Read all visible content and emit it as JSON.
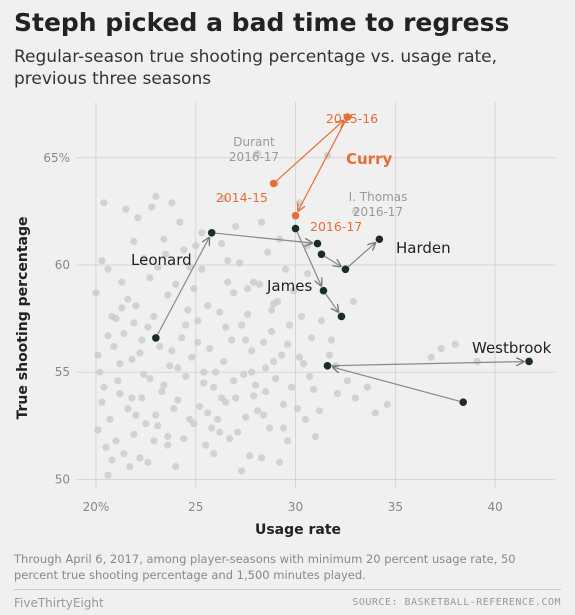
{
  "title": "Steph picked a bad time to regress",
  "subtitle": "Regular-season true shooting percentage vs. usage rate, previous three seasons",
  "footnote": "Through April 6, 2017, among player-seasons with minimum 20 percent usage rate, 50 percent true shooting percentage and 1,500 minutes played.",
  "footer": {
    "brand": "FiveThirtyEight",
    "source": "SOURCE: BASKETBALL-REFERENCE.COM"
  },
  "colors": {
    "background": "#f0f0f0",
    "background_dots": "#c8c8c8",
    "highlight_dark": "#1c2b2b",
    "curry": "#e86d35",
    "annotation_gray": "#999999",
    "arrow_gray": "#888888"
  },
  "chart_data": {
    "type": "scatter",
    "title": "Steph picked a bad time to regress",
    "xlabel": "Usage rate",
    "ylabel": "True shooting percentage",
    "xlim": [
      19,
      43
    ],
    "ylim": [
      49.6,
      67.6
    ],
    "x_ticks": [
      20,
      25,
      30,
      35,
      40
    ],
    "x_tick_labels": [
      "20%",
      "25",
      "30",
      "35",
      "40"
    ],
    "y_ticks": [
      50,
      55,
      60,
      65
    ],
    "y_tick_labels": [
      "50",
      "55",
      "60",
      "65%"
    ],
    "grid": true,
    "background_points": [
      [
        20.0,
        58.7
      ],
      [
        20.4,
        62.9
      ],
      [
        20.6,
        59.8
      ],
      [
        20.9,
        56.2
      ],
      [
        20.2,
        55.0
      ],
      [
        21.1,
        54.6
      ],
      [
        20.3,
        53.6
      ],
      [
        20.7,
        52.8
      ],
      [
        20.1,
        52.3
      ],
      [
        20.5,
        51.5
      ],
      [
        20.8,
        50.9
      ],
      [
        20.6,
        50.2
      ],
      [
        21.3,
        59.2
      ],
      [
        21.6,
        58.4
      ],
      [
        21.0,
        57.5
      ],
      [
        21.4,
        56.8
      ],
      [
        21.8,
        55.6
      ],
      [
        21.2,
        54.0
      ],
      [
        21.6,
        53.3
      ],
      [
        21.9,
        52.1
      ],
      [
        21.4,
        51.2
      ],
      [
        21.7,
        50.6
      ],
      [
        22.1,
        62.2
      ],
      [
        22.4,
        60.3
      ],
      [
        22.0,
        58.1
      ],
      [
        22.6,
        57.1
      ],
      [
        22.2,
        55.9
      ],
      [
        22.7,
        54.7
      ],
      [
        22.3,
        53.8
      ],
      [
        22.5,
        52.6
      ],
      [
        22.9,
        51.8
      ],
      [
        22.2,
        51.0
      ],
      [
        23.0,
        63.2
      ],
      [
        23.4,
        61.2
      ],
      [
        23.1,
        59.9
      ],
      [
        23.6,
        58.6
      ],
      [
        23.2,
        56.2
      ],
      [
        23.7,
        55.3
      ],
      [
        23.4,
        54.4
      ],
      [
        23.9,
        53.3
      ],
      [
        23.1,
        52.5
      ],
      [
        23.6,
        51.6
      ],
      [
        24.2,
        62.0
      ],
      [
        24.4,
        60.7
      ],
      [
        24.0,
        59.1
      ],
      [
        24.6,
        57.9
      ],
      [
        24.3,
        56.6
      ],
      [
        24.8,
        55.7
      ],
      [
        24.5,
        54.8
      ],
      [
        24.1,
        53.7
      ],
      [
        24.7,
        52.8
      ],
      [
        24.4,
        51.9
      ],
      [
        25.3,
        59.8
      ],
      [
        25.6,
        58.1
      ],
      [
        25.1,
        57.4
      ],
      [
        25.7,
        56.1
      ],
      [
        25.4,
        55.0
      ],
      [
        25.9,
        54.3
      ],
      [
        25.2,
        53.4
      ],
      [
        25.8,
        52.4
      ],
      [
        25.5,
        51.6
      ],
      [
        26.3,
        61.0
      ],
      [
        26.6,
        59.2
      ],
      [
        26.2,
        57.8
      ],
      [
        26.8,
        56.5
      ],
      [
        26.4,
        55.5
      ],
      [
        26.9,
        54.6
      ],
      [
        26.5,
        53.6
      ],
      [
        26.1,
        52.8
      ],
      [
        26.7,
        51.9
      ],
      [
        27.2,
        60.1
      ],
      [
        27.6,
        58.9
      ],
      [
        27.3,
        57.2
      ],
      [
        27.8,
        56.0
      ],
      [
        27.4,
        54.9
      ],
      [
        27.9,
        53.9
      ],
      [
        27.5,
        52.9
      ],
      [
        27.1,
        52.2
      ],
      [
        27.7,
        51.1
      ],
      [
        28.3,
        62.0
      ],
      [
        28.6,
        60.6
      ],
      [
        28.2,
        59.1
      ],
      [
        28.8,
        57.9
      ],
      [
        28.4,
        56.4
      ],
      [
        28.9,
        55.5
      ],
      [
        28.5,
        54.1
      ],
      [
        28.1,
        53.2
      ],
      [
        28.7,
        52.4
      ],
      [
        28.3,
        51.0
      ],
      [
        29.2,
        61.2
      ],
      [
        29.5,
        59.8
      ],
      [
        29.1,
        58.3
      ],
      [
        29.7,
        57.2
      ],
      [
        29.3,
        55.8
      ],
      [
        29.8,
        54.3
      ],
      [
        29.4,
        53.5
      ],
      [
        29.6,
        51.8
      ],
      [
        30.2,
        62.9
      ],
      [
        30.6,
        59.6
      ],
      [
        30.3,
        57.6
      ],
      [
        30.8,
        56.6
      ],
      [
        30.4,
        55.4
      ],
      [
        30.9,
        54.2
      ],
      [
        31.3,
        57.4
      ],
      [
        31.7,
        55.8
      ],
      [
        31.2,
        53.2
      ],
      [
        32.0,
        55.3
      ],
      [
        32.6,
        54.6
      ],
      [
        33.0,
        53.8
      ],
      [
        33.6,
        54.3
      ],
      [
        34.0,
        53.1
      ],
      [
        34.6,
        53.5
      ],
      [
        36.8,
        55.7
      ],
      [
        37.3,
        56.1
      ],
      [
        38.0,
        56.3
      ],
      [
        39.1,
        55.5
      ],
      [
        21.9,
        61.1
      ],
      [
        23.8,
        62.9
      ],
      [
        25.0,
        60.9
      ],
      [
        27.9,
        59.2
      ],
      [
        28.1,
        65.2
      ],
      [
        31.6,
        65.1
      ],
      [
        33.0,
        62.5
      ],
      [
        32.9,
        58.3
      ],
      [
        26.4,
        63.1
      ],
      [
        29.0,
        63.8
      ],
      [
        20.8,
        57.6
      ],
      [
        22.9,
        57.6
      ],
      [
        24.9,
        58.9
      ],
      [
        27.0,
        61.8
      ],
      [
        21.3,
        58.0
      ],
      [
        22.7,
        59.4
      ],
      [
        24.5,
        57.2
      ],
      [
        26.0,
        55.0
      ],
      [
        27.5,
        56.5
      ],
      [
        29.9,
        58.8
      ],
      [
        23.3,
        54.1
      ],
      [
        25.6,
        53.1
      ],
      [
        28.4,
        53.0
      ],
      [
        30.1,
        53.3
      ],
      [
        20.4,
        54.3
      ],
      [
        21.8,
        53.8
      ],
      [
        22.6,
        50.8
      ],
      [
        24.0,
        50.6
      ],
      [
        25.9,
        51.2
      ],
      [
        27.3,
        50.4
      ],
      [
        29.2,
        50.8
      ],
      [
        31.0,
        52.0
      ],
      [
        26.9,
        58.7
      ],
      [
        22.3,
        56.5
      ],
      [
        20.3,
        60.2
      ],
      [
        21.5,
        62.6
      ],
      [
        24.7,
        59.9
      ],
      [
        26.6,
        60.2
      ],
      [
        28.9,
        58.2
      ],
      [
        30.6,
        60.9
      ],
      [
        23.5,
        60.5
      ],
      [
        25.3,
        61.5
      ],
      [
        22.8,
        62.7
      ],
      [
        31.8,
        56.5
      ],
      [
        21.2,
        55.4
      ],
      [
        22.4,
        54.9
      ],
      [
        23.8,
        56.0
      ],
      [
        25.1,
        56.4
      ],
      [
        26.5,
        57.1
      ],
      [
        27.6,
        57.7
      ],
      [
        28.8,
        56.9
      ],
      [
        30.2,
        55.7
      ],
      [
        20.6,
        56.7
      ],
      [
        21.9,
        57.3
      ],
      [
        24.1,
        55.2
      ],
      [
        25.4,
        54.5
      ],
      [
        27.0,
        53.8
      ],
      [
        28.5,
        55.2
      ],
      [
        29.6,
        56.3
      ],
      [
        23.0,
        53.0
      ],
      [
        26.2,
        52.2
      ],
      [
        28.0,
        54.4
      ],
      [
        29.4,
        52.4
      ],
      [
        30.5,
        52.8
      ],
      [
        20.1,
        55.8
      ],
      [
        21.0,
        51.8
      ],
      [
        22.0,
        53.0
      ],
      [
        23.6,
        52.0
      ],
      [
        24.9,
        52.6
      ],
      [
        26.3,
        53.8
      ],
      [
        27.8,
        55.0
      ],
      [
        29.0,
        54.7
      ],
      [
        30.7,
        54.8
      ],
      [
        32.1,
        54.0
      ]
    ],
    "highlighted_series": [
      {
        "name": "Leonard",
        "points": [
          [
            23.0,
            56.6
          ],
          [
            25.8,
            61.5
          ],
          [
            31.1,
            61.0
          ]
        ]
      },
      {
        "name": "Harden",
        "points": [
          [
            31.3,
            60.5
          ],
          [
            32.5,
            59.8
          ],
          [
            34.2,
            61.2
          ]
        ]
      },
      {
        "name": "James",
        "points": [
          [
            30.0,
            61.7
          ],
          [
            31.4,
            58.8
          ],
          [
            32.3,
            57.6
          ]
        ]
      },
      {
        "name": "Westbrook",
        "points": [
          [
            38.4,
            53.6
          ],
          [
            31.6,
            55.3
          ],
          [
            41.7,
            55.5
          ]
        ]
      },
      {
        "name": "Curry",
        "seasons": [
          "2014-15",
          "2015-16",
          "2016-17"
        ],
        "points": [
          [
            28.9,
            63.8
          ],
          [
            32.6,
            66.9
          ],
          [
            30.0,
            62.3
          ]
        ]
      }
    ],
    "annotations": [
      {
        "text_lines": [
          "Durant",
          "2016-17"
        ],
        "x": 27.9,
        "y": 65.2
      },
      {
        "text_lines": [
          "I. Thomas",
          "2016-17"
        ],
        "x": 33.8,
        "y": 62.7
      }
    ]
  }
}
